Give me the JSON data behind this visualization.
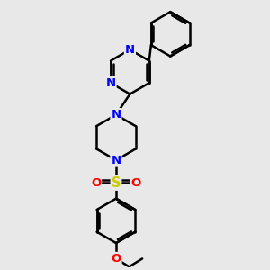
{
  "bg_color": "#e8e8e8",
  "bond_color": "#000000",
  "bond_width": 1.8,
  "N_color": "#0000ff",
  "O_color": "#ff0000",
  "S_color": "#cccc00",
  "font_size": 9.5,
  "fig_width": 3.0,
  "fig_height": 3.0,
  "xlim": [
    -3.0,
    4.5
  ],
  "ylim": [
    -5.5,
    5.0
  ]
}
